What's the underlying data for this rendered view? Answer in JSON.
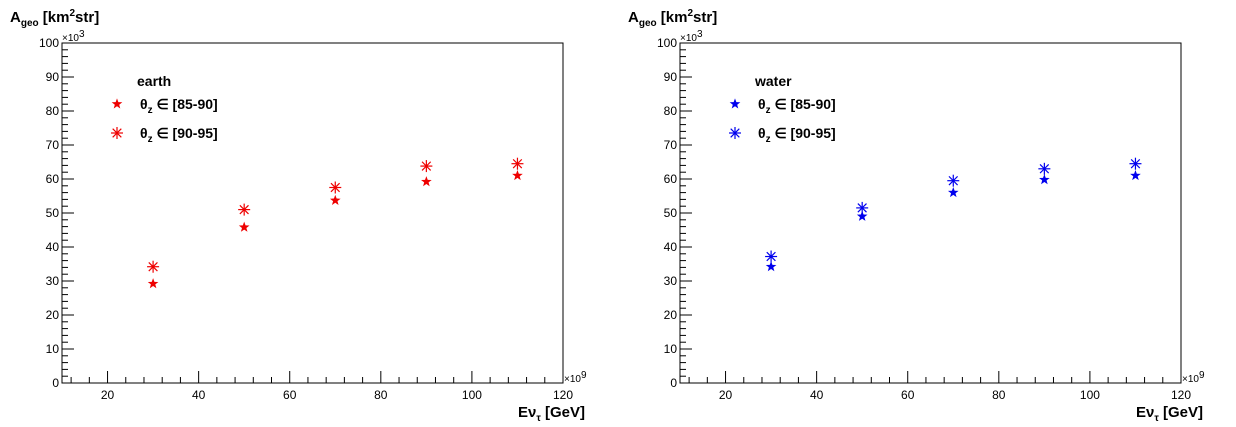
{
  "chart_data": [
    {
      "type": "scatter",
      "color": "#ee0000",
      "ylabel": {
        "main": "A",
        "sub": "geo",
        "unit_pre": " [km",
        "sup": "2",
        "unit_post": "str]"
      },
      "xlabel": {
        "main": "E",
        "nu": "ν",
        "sub": "τ",
        "unit": " [GeV]"
      },
      "y_multiplier": "×10",
      "y_multiplier_exp": "3",
      "x_multiplier": "×10",
      "x_multiplier_exp": "9",
      "xlim": [
        10,
        120
      ],
      "ylim": [
        0,
        100
      ],
      "x_ticks": [
        20,
        40,
        60,
        80,
        100,
        120
      ],
      "y_ticks": [
        0,
        10,
        20,
        30,
        40,
        50,
        60,
        70,
        80,
        90,
        100
      ],
      "legend_title": "earth",
      "series": [
        {
          "name": "θz ∈ [85-90]",
          "label_main": "θ",
          "label_sub": "z",
          "label_rest": " ∈ [85-90]",
          "marker": "star",
          "points": [
            [
              30,
              29.2
            ],
            [
              50,
              45.8
            ],
            [
              70,
              53.7
            ],
            [
              90,
              59.2
            ],
            [
              110,
              61.0
            ]
          ]
        },
        {
          "name": "θz ∈ [90-95]",
          "label_main": "θ",
          "label_sub": "z",
          "label_rest": " ∈ [90-95]",
          "marker": "asterisk",
          "points": [
            [
              30,
              34.2
            ],
            [
              50,
              51.0
            ],
            [
              70,
              57.5
            ],
            [
              90,
              63.8
            ],
            [
              110,
              64.5
            ]
          ]
        }
      ]
    },
    {
      "type": "scatter",
      "color": "#0000ee",
      "ylabel": {
        "main": "A",
        "sub": "geo",
        "unit_pre": " [km",
        "sup": "2",
        "unit_post": "str]"
      },
      "xlabel": {
        "main": "E",
        "nu": "ν",
        "sub": "τ",
        "unit": " [GeV]"
      },
      "y_multiplier": "×10",
      "y_multiplier_exp": "3",
      "x_multiplier": "×10",
      "x_multiplier_exp": "9",
      "xlim": [
        10,
        120
      ],
      "ylim": [
        0,
        100
      ],
      "x_ticks": [
        20,
        40,
        60,
        80,
        100,
        120
      ],
      "y_ticks": [
        0,
        10,
        20,
        30,
        40,
        50,
        60,
        70,
        80,
        90,
        100
      ],
      "legend_title": "water",
      "series": [
        {
          "name": "θz ∈ [85-90]",
          "label_main": "θ",
          "label_sub": "z",
          "label_rest": " ∈ [85-90]",
          "marker": "star",
          "points": [
            [
              30,
              34.2
            ],
            [
              50,
              49.0
            ],
            [
              70,
              56.0
            ],
            [
              90,
              59.8
            ],
            [
              110,
              61.0
            ]
          ]
        },
        {
          "name": "θz ∈ [90-95]",
          "label_main": "θ",
          "label_sub": "z",
          "label_rest": " ∈ [90-95]",
          "marker": "asterisk",
          "points": [
            [
              30,
              37.2
            ],
            [
              50,
              51.5
            ],
            [
              70,
              59.5
            ],
            [
              90,
              63.0
            ],
            [
              110,
              64.5
            ]
          ]
        }
      ]
    }
  ]
}
